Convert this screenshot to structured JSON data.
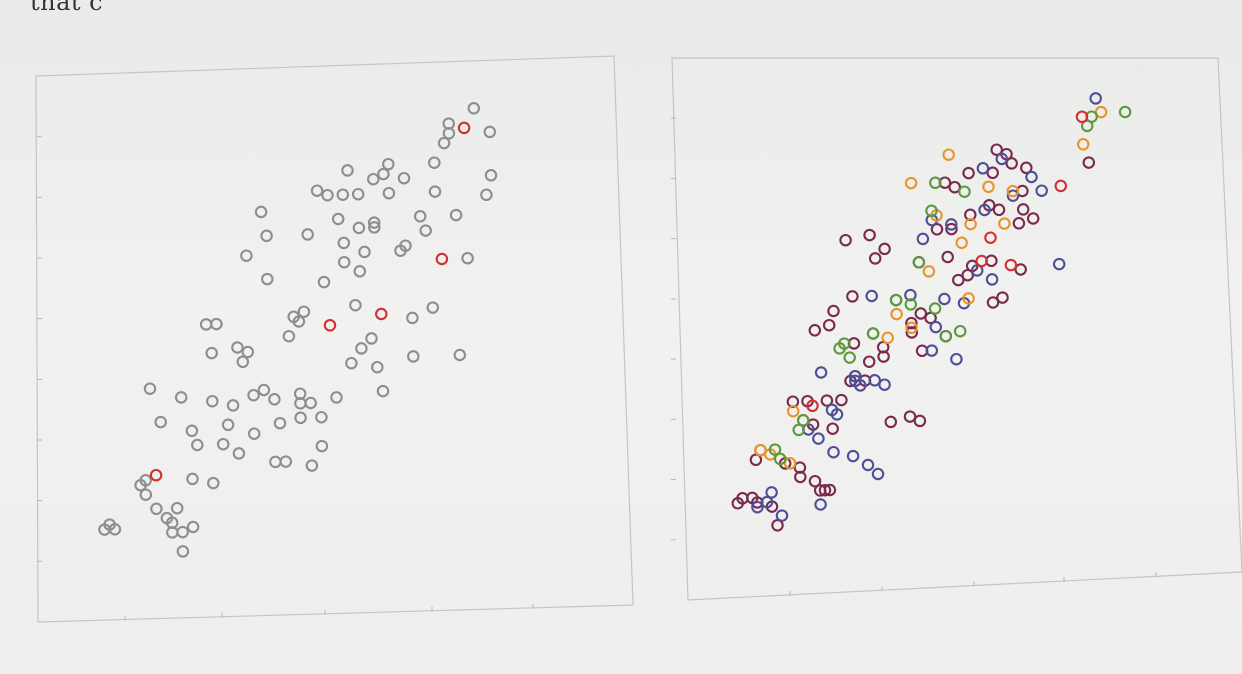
{
  "page_text": "that c",
  "colors": {
    "frame": "#c4c6c4",
    "tick": "#b7b9b7",
    "gray_point": "#8e8f8c",
    "highlight_point": "#d42f31",
    "purple": "#7a2a4e",
    "blue": "#4f4f98",
    "orange": "#e8942c",
    "green": "#5a9a3c",
    "red": "#d42f31"
  },
  "chart_data": [
    {
      "type": "scatter",
      "title": "",
      "xlabel": "",
      "ylabel": "",
      "xlim": [
        0,
        100
      ],
      "ylim": [
        0,
        100
      ],
      "grid": false,
      "legend": "none",
      "series": [
        {
          "color_key": "gray_point",
          "points": [
            [
              74,
              94
            ],
            [
              74,
              92
            ],
            [
              73,
              90
            ],
            [
              79,
              97
            ],
            [
              82,
              92
            ],
            [
              54,
              85
            ],
            [
              62,
              86
            ],
            [
              61,
              84
            ],
            [
              65,
              83
            ],
            [
              71,
              86
            ],
            [
              59,
              83
            ],
            [
              53,
              80
            ],
            [
              48,
              81
            ],
            [
              50,
              80
            ],
            [
              56,
              80
            ],
            [
              62,
              80
            ],
            [
              71,
              80
            ],
            [
              82,
              83
            ],
            [
              81,
              79
            ],
            [
              37,
              77
            ],
            [
              52,
              75
            ],
            [
              59,
              74
            ],
            [
              68,
              75
            ],
            [
              75,
              75
            ],
            [
              38,
              72
            ],
            [
              46,
              72
            ],
            [
              53,
              70
            ],
            [
              56,
              73
            ],
            [
              59,
              73
            ],
            [
              69,
              72
            ],
            [
              65,
              69
            ],
            [
              34,
              68
            ],
            [
              57,
              68
            ],
            [
              64,
              68
            ],
            [
              77,
              66
            ],
            [
              38,
              63
            ],
            [
              49,
              62
            ],
            [
              53,
              66
            ],
            [
              56,
              64
            ],
            [
              26,
              54
            ],
            [
              28,
              54
            ],
            [
              44,
              54
            ],
            [
              45,
              56
            ],
            [
              43,
              55
            ],
            [
              55,
              57
            ],
            [
              70,
              56
            ],
            [
              66,
              54
            ],
            [
              27,
              48
            ],
            [
              32,
              49
            ],
            [
              34,
              48
            ],
            [
              33,
              46
            ],
            [
              42,
              51
            ],
            [
              56,
              48
            ],
            [
              58,
              50
            ],
            [
              59,
              44
            ],
            [
              54,
              45
            ],
            [
              66,
              46
            ],
            [
              75,
              46
            ],
            [
              15,
              41
            ],
            [
              21,
              39
            ],
            [
              27,
              38
            ],
            [
              31,
              37
            ],
            [
              35,
              39
            ],
            [
              37,
              40
            ],
            [
              39,
              38
            ],
            [
              44,
              39
            ],
            [
              44,
              37
            ],
            [
              46,
              37
            ],
            [
              51,
              38
            ],
            [
              60,
              39
            ],
            [
              17,
              34
            ],
            [
              23,
              32
            ],
            [
              30,
              33
            ],
            [
              35,
              31
            ],
            [
              40,
              33
            ],
            [
              44,
              34
            ],
            [
              48,
              34
            ],
            [
              29,
              29
            ],
            [
              24,
              29
            ],
            [
              32,
              27
            ],
            [
              39,
              25
            ],
            [
              41,
              25
            ],
            [
              46,
              24
            ],
            [
              48,
              28
            ],
            [
              23,
              22
            ],
            [
              27,
              21
            ],
            [
              14,
              19
            ],
            [
              13,
              21
            ],
            [
              14,
              22
            ],
            [
              16,
              16
            ],
            [
              20,
              16
            ],
            [
              18,
              14
            ],
            [
              19,
              13
            ],
            [
              19,
              11
            ],
            [
              21,
              11
            ],
            [
              23,
              12
            ],
            [
              6,
              12
            ],
            [
              8,
              12
            ],
            [
              7,
              13
            ],
            [
              21,
              7
            ]
          ]
        },
        {
          "color_key": "highlight_point",
          "points": [
            [
              77,
              93
            ],
            [
              72,
              66
            ],
            [
              60,
              55
            ],
            [
              50,
              53
            ],
            [
              16,
              23
            ]
          ]
        }
      ]
    },
    {
      "type": "scatter",
      "title": "",
      "xlabel": "",
      "ylabel": "",
      "xlim": [
        0,
        100
      ],
      "ylim": [
        0,
        100
      ],
      "grid": false,
      "legend": "none",
      "series": [
        {
          "color_key": "purple",
          "points": [
            [
              60,
              87
            ],
            [
              62,
              86
            ],
            [
              63,
              84
            ],
            [
              66,
              83
            ],
            [
              59,
              82
            ],
            [
              54,
              82
            ],
            [
              49,
              80
            ],
            [
              51,
              79
            ],
            [
              79,
              84
            ],
            [
              65,
              78
            ],
            [
              58,
              75
            ],
            [
              60,
              74
            ],
            [
              54,
              73
            ],
            [
              65,
              74
            ],
            [
              67,
              72
            ],
            [
              64,
              71
            ],
            [
              47,
              70
            ],
            [
              50,
              70
            ],
            [
              33,
              69
            ],
            [
              28,
              68
            ],
            [
              36,
              66
            ],
            [
              34,
              64
            ],
            [
              49,
              64
            ],
            [
              43,
              63
            ],
            [
              54,
              62
            ],
            [
              58,
              63
            ],
            [
              64,
              61
            ],
            [
              53,
              60
            ],
            [
              51,
              59
            ],
            [
              29,
              56
            ],
            [
              58,
              54
            ],
            [
              60,
              55
            ],
            [
              25,
              53
            ],
            [
              43,
              52
            ],
            [
              45,
              51
            ],
            [
              41,
              50
            ],
            [
              21,
              49
            ],
            [
              24,
              50
            ],
            [
              41,
              48
            ],
            [
              48,
              47
            ],
            [
              29,
              46
            ],
            [
              35,
              45
            ],
            [
              43,
              44
            ],
            [
              35,
              43
            ],
            [
              32,
              42
            ],
            [
              29,
              39
            ],
            [
              28,
              38
            ],
            [
              31,
              38
            ],
            [
              16,
              34
            ],
            [
              19,
              34
            ],
            [
              23,
              34
            ],
            [
              26,
              34
            ],
            [
              20,
              29
            ],
            [
              24,
              28
            ],
            [
              36,
              29
            ],
            [
              40,
              30
            ],
            [
              42,
              29
            ],
            [
              8,
              22
            ],
            [
              9,
              24
            ],
            [
              14,
              21
            ],
            [
              17,
              20
            ],
            [
              17,
              18
            ],
            [
              20,
              17
            ],
            [
              21,
              15
            ],
            [
              22,
              15
            ],
            [
              23,
              15
            ],
            [
              4,
              13
            ],
            [
              5,
              14
            ],
            [
              7,
              14
            ],
            [
              8,
              13
            ],
            [
              11,
              12
            ],
            [
              12,
              8
            ]
          ]
        },
        {
          "color_key": "blue",
          "points": [
            [
              81,
              98
            ],
            [
              61,
              85
            ],
            [
              57,
              83
            ],
            [
              67,
              81
            ],
            [
              69,
              78
            ],
            [
              63,
              77
            ],
            [
              57,
              74
            ],
            [
              50,
              71
            ],
            [
              46,
              72
            ],
            [
              44,
              68
            ],
            [
              55,
              61
            ],
            [
              72,
              62
            ],
            [
              33,
              56
            ],
            [
              38,
              55
            ],
            [
              41,
              56
            ],
            [
              48,
              55
            ],
            [
              58,
              59
            ],
            [
              52,
              54
            ],
            [
              33,
              48
            ],
            [
              46,
              49
            ],
            [
              45,
              44
            ],
            [
              50,
              42
            ],
            [
              22,
              40
            ],
            [
              29,
              39
            ],
            [
              33,
              38
            ],
            [
              29,
              38
            ],
            [
              30,
              37
            ],
            [
              35,
              37
            ],
            [
              24,
              32
            ],
            [
              25,
              31
            ],
            [
              19,
              28
            ],
            [
              21,
              26
            ],
            [
              24,
              23
            ],
            [
              28,
              22
            ],
            [
              31,
              20
            ],
            [
              33,
              18
            ],
            [
              11,
              15
            ],
            [
              10,
              13
            ],
            [
              8,
              12
            ],
            [
              13,
              10
            ],
            [
              21,
              12
            ]
          ]
        },
        {
          "color_key": "orange",
          "points": [
            [
              82,
              95
            ],
            [
              78,
              88
            ],
            [
              50,
              86
            ],
            [
              42,
              80
            ],
            [
              58,
              79
            ],
            [
              63,
              78
            ],
            [
              47,
              73
            ],
            [
              54,
              71
            ],
            [
              61,
              71
            ],
            [
              52,
              67
            ],
            [
              45,
              61
            ],
            [
              53,
              55
            ],
            [
              38,
              52
            ],
            [
              41,
              49
            ],
            [
              36,
              47
            ],
            [
              16,
              32
            ],
            [
              18,
              30
            ],
            [
              9,
              24
            ],
            [
              11,
              23
            ],
            [
              15,
              21
            ]
          ]
        },
        {
          "color_key": "green",
          "points": [
            [
              87,
              95
            ],
            [
              80,
              94
            ],
            [
              79,
              92
            ],
            [
              47,
              80
            ],
            [
              53,
              78
            ],
            [
              46,
              74
            ],
            [
              43,
              63
            ],
            [
              38,
              55
            ],
            [
              41,
              54
            ],
            [
              46,
              53
            ],
            [
              48,
              47
            ],
            [
              51,
              48
            ],
            [
              33,
              48
            ],
            [
              27,
              46
            ],
            [
              26,
              45
            ],
            [
              28,
              43
            ],
            [
              18,
              30
            ],
            [
              17,
              28
            ],
            [
              12,
              24
            ],
            [
              13,
              22
            ]
          ]
        },
        {
          "color_key": "red",
          "points": [
            [
              78,
              94
            ],
            [
              73,
              79
            ],
            [
              58,
              68
            ],
            [
              56,
              63
            ],
            [
              62,
              62
            ],
            [
              20,
              33
            ]
          ]
        }
      ]
    }
  ]
}
